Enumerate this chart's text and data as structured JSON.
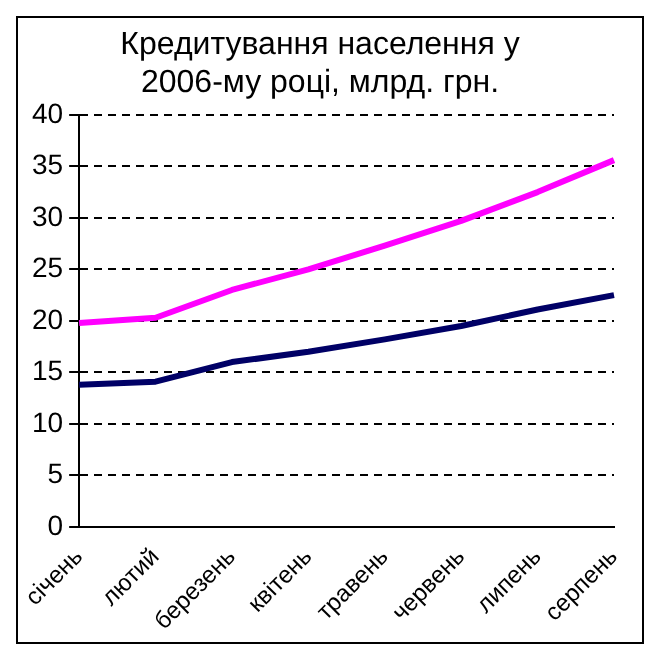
{
  "chart_data": {
    "type": "line",
    "title": "Кредитування населення у 2006-му році, млрд. грн.",
    "categories": [
      "січень",
      "лютий",
      "березень",
      "квітень",
      "травень",
      "червень",
      "липень",
      "серпень"
    ],
    "series": [
      {
        "color": "#ff00ff",
        "values": [
          19.8,
          20.3,
          23,
          25,
          27.3,
          29.7,
          32.5,
          35.6
        ]
      },
      {
        "color": "#000066",
        "values": [
          13.8,
          14.1,
          16,
          17,
          18.2,
          19.5,
          21.1,
          22.5
        ]
      }
    ],
    "ylim": [
      0,
      40
    ],
    "yticks": [
      0,
      5,
      10,
      15,
      20,
      25,
      30,
      35,
      40
    ],
    "grid": "y",
    "legend": false,
    "marker": "none",
    "line_style": "solid"
  }
}
